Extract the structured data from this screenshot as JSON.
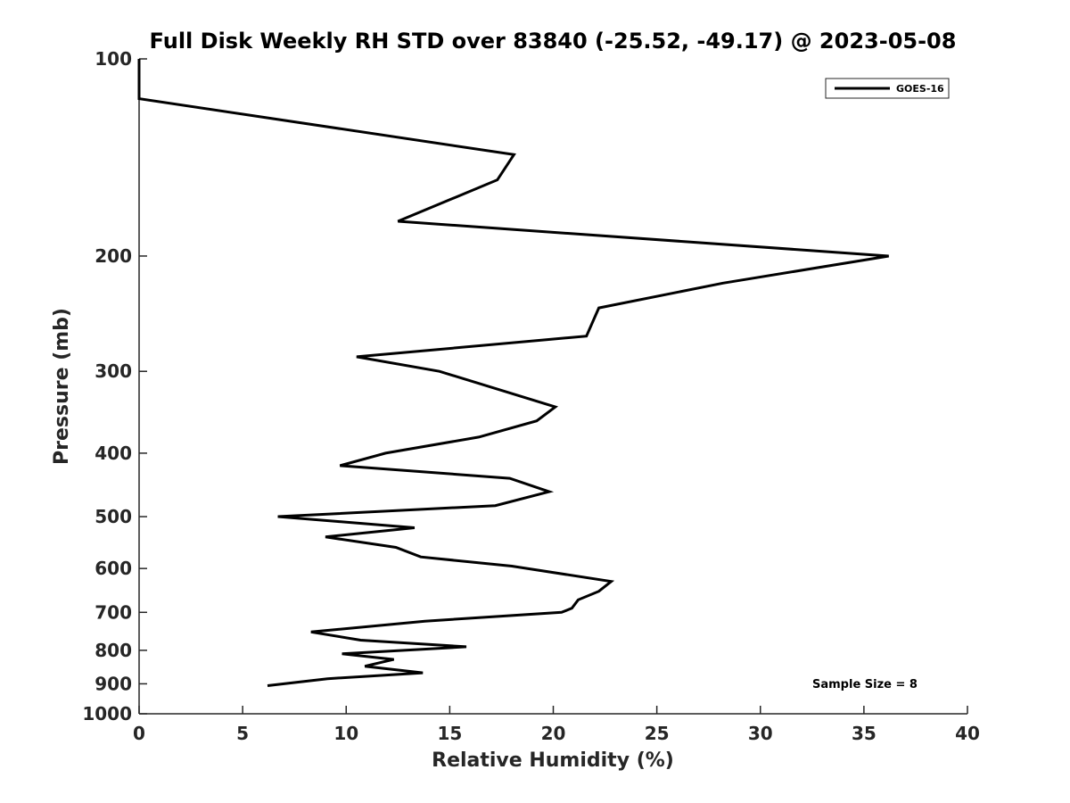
{
  "chart_data": {
    "type": "line",
    "title": "Full Disk Weekly RH STD over 83840 (-25.52, -49.17) @ 2023-05-08",
    "xlabel": "Relative Humidity (%)",
    "ylabel": "Pressure (mb)",
    "xlim": [
      0,
      40
    ],
    "ylim": [
      100,
      1000
    ],
    "y_scale": "log",
    "y_reversed": true,
    "xticks": [
      0,
      5,
      10,
      15,
      20,
      25,
      30,
      35,
      40
    ],
    "yticks": [
      100,
      200,
      300,
      400,
      500,
      600,
      700,
      800,
      900,
      1000
    ],
    "grid": false,
    "legend_position": "top-right",
    "annotation": "Sample Size = 8",
    "series": [
      {
        "name": "GOES-16",
        "color": "#000000",
        "x": [
          0,
          0,
          18.1,
          17.3,
          12.5,
          36.2,
          28.2,
          22.2,
          21.6,
          10.5,
          14.5,
          20.1,
          19.2,
          16.4,
          11.9,
          9.7,
          17.9,
          19.8,
          17.2,
          6.7,
          13.3,
          9.0,
          12.4,
          13.6,
          18.0,
          22.8,
          22.2,
          21.2,
          20.9,
          20.4,
          13.8,
          8.3,
          10.7,
          15.8,
          9.8,
          12.3,
          10.9,
          13.7,
          9.1,
          6.2
        ],
        "y": [
          100,
          115,
          140,
          153,
          177,
          200,
          220,
          240,
          265,
          285,
          300,
          340,
          357,
          378,
          400,
          418,
          437,
          458,
          481,
          500,
          520,
          537,
          557,
          576,
          595,
          628,
          650,
          670,
          690,
          700,
          722,
          750,
          772,
          790,
          810,
          826,
          846,
          866,
          884,
          906
        ]
      }
    ]
  }
}
